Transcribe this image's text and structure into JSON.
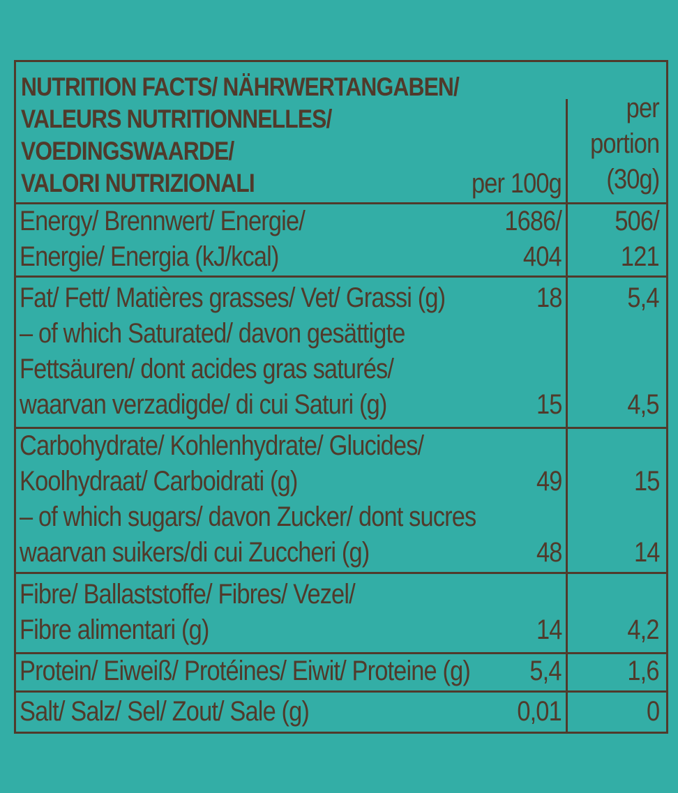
{
  "header": {
    "title_lines": [
      "NUTRITION FACTS/ NÄHRWERTANGABEN/",
      "VALEURS NUTRITIONNELLES/",
      "VOEDINGSWAARDE/",
      "VALORI NUTRIZIONALI"
    ],
    "per100g": "per 100g",
    "per_portion_lines": [
      "per",
      "portion",
      "(30g)"
    ]
  },
  "rows": [
    {
      "lines": [
        {
          "label": "Energy/ Brennwert/ Energie/",
          "per100g": "1686/",
          "portion": "506/"
        },
        {
          "label": "Energie/ Energia (kJ/kcal)",
          "per100g": "404",
          "portion": "121"
        }
      ]
    },
    {
      "lines": [
        {
          "label": "Fat/ Fett/ Matières grasses/ Vet/ Grassi (g)",
          "per100g": "18",
          "portion": "5,4"
        },
        {
          "label": "– of which Saturated/ davon gesättigte"
        },
        {
          "label": "Fettsäuren/ dont acides gras saturés/"
        },
        {
          "label": "waarvan verzadigde/ di cui Saturi (g)",
          "per100g": "15",
          "portion": "4,5"
        }
      ]
    },
    {
      "lines": [
        {
          "label": "Carbohydrate/ Kohlenhydrate/ Glucides/"
        },
        {
          "label": "Koolhydraat/ Carboidrati (g)",
          "per100g": "49",
          "portion": "15"
        },
        {
          "label": "– of which sugars/ davon Zucker/ dont sucres"
        },
        {
          "label": "waarvan suikers/di cui Zuccheri (g)",
          "per100g": "48",
          "portion": "14"
        }
      ]
    },
    {
      "lines": [
        {
          "label": "Fibre/ Ballaststoffe/ Fibres/ Vezel/"
        },
        {
          "label": "Fibre alimentari (g)",
          "per100g": "14",
          "portion": "4,2"
        }
      ]
    },
    {
      "lines": [
        {
          "label": "Protein/ Eiweiß/ Protéines/ Eiwit/ Proteine (g)",
          "per100g": "5,4",
          "portion": "1,6"
        }
      ]
    },
    {
      "lines": [
        {
          "label": "Salt/ Salz/ Sel/ Zout/ Sale (g)",
          "per100g": "0,01",
          "portion": "0"
        }
      ]
    }
  ]
}
